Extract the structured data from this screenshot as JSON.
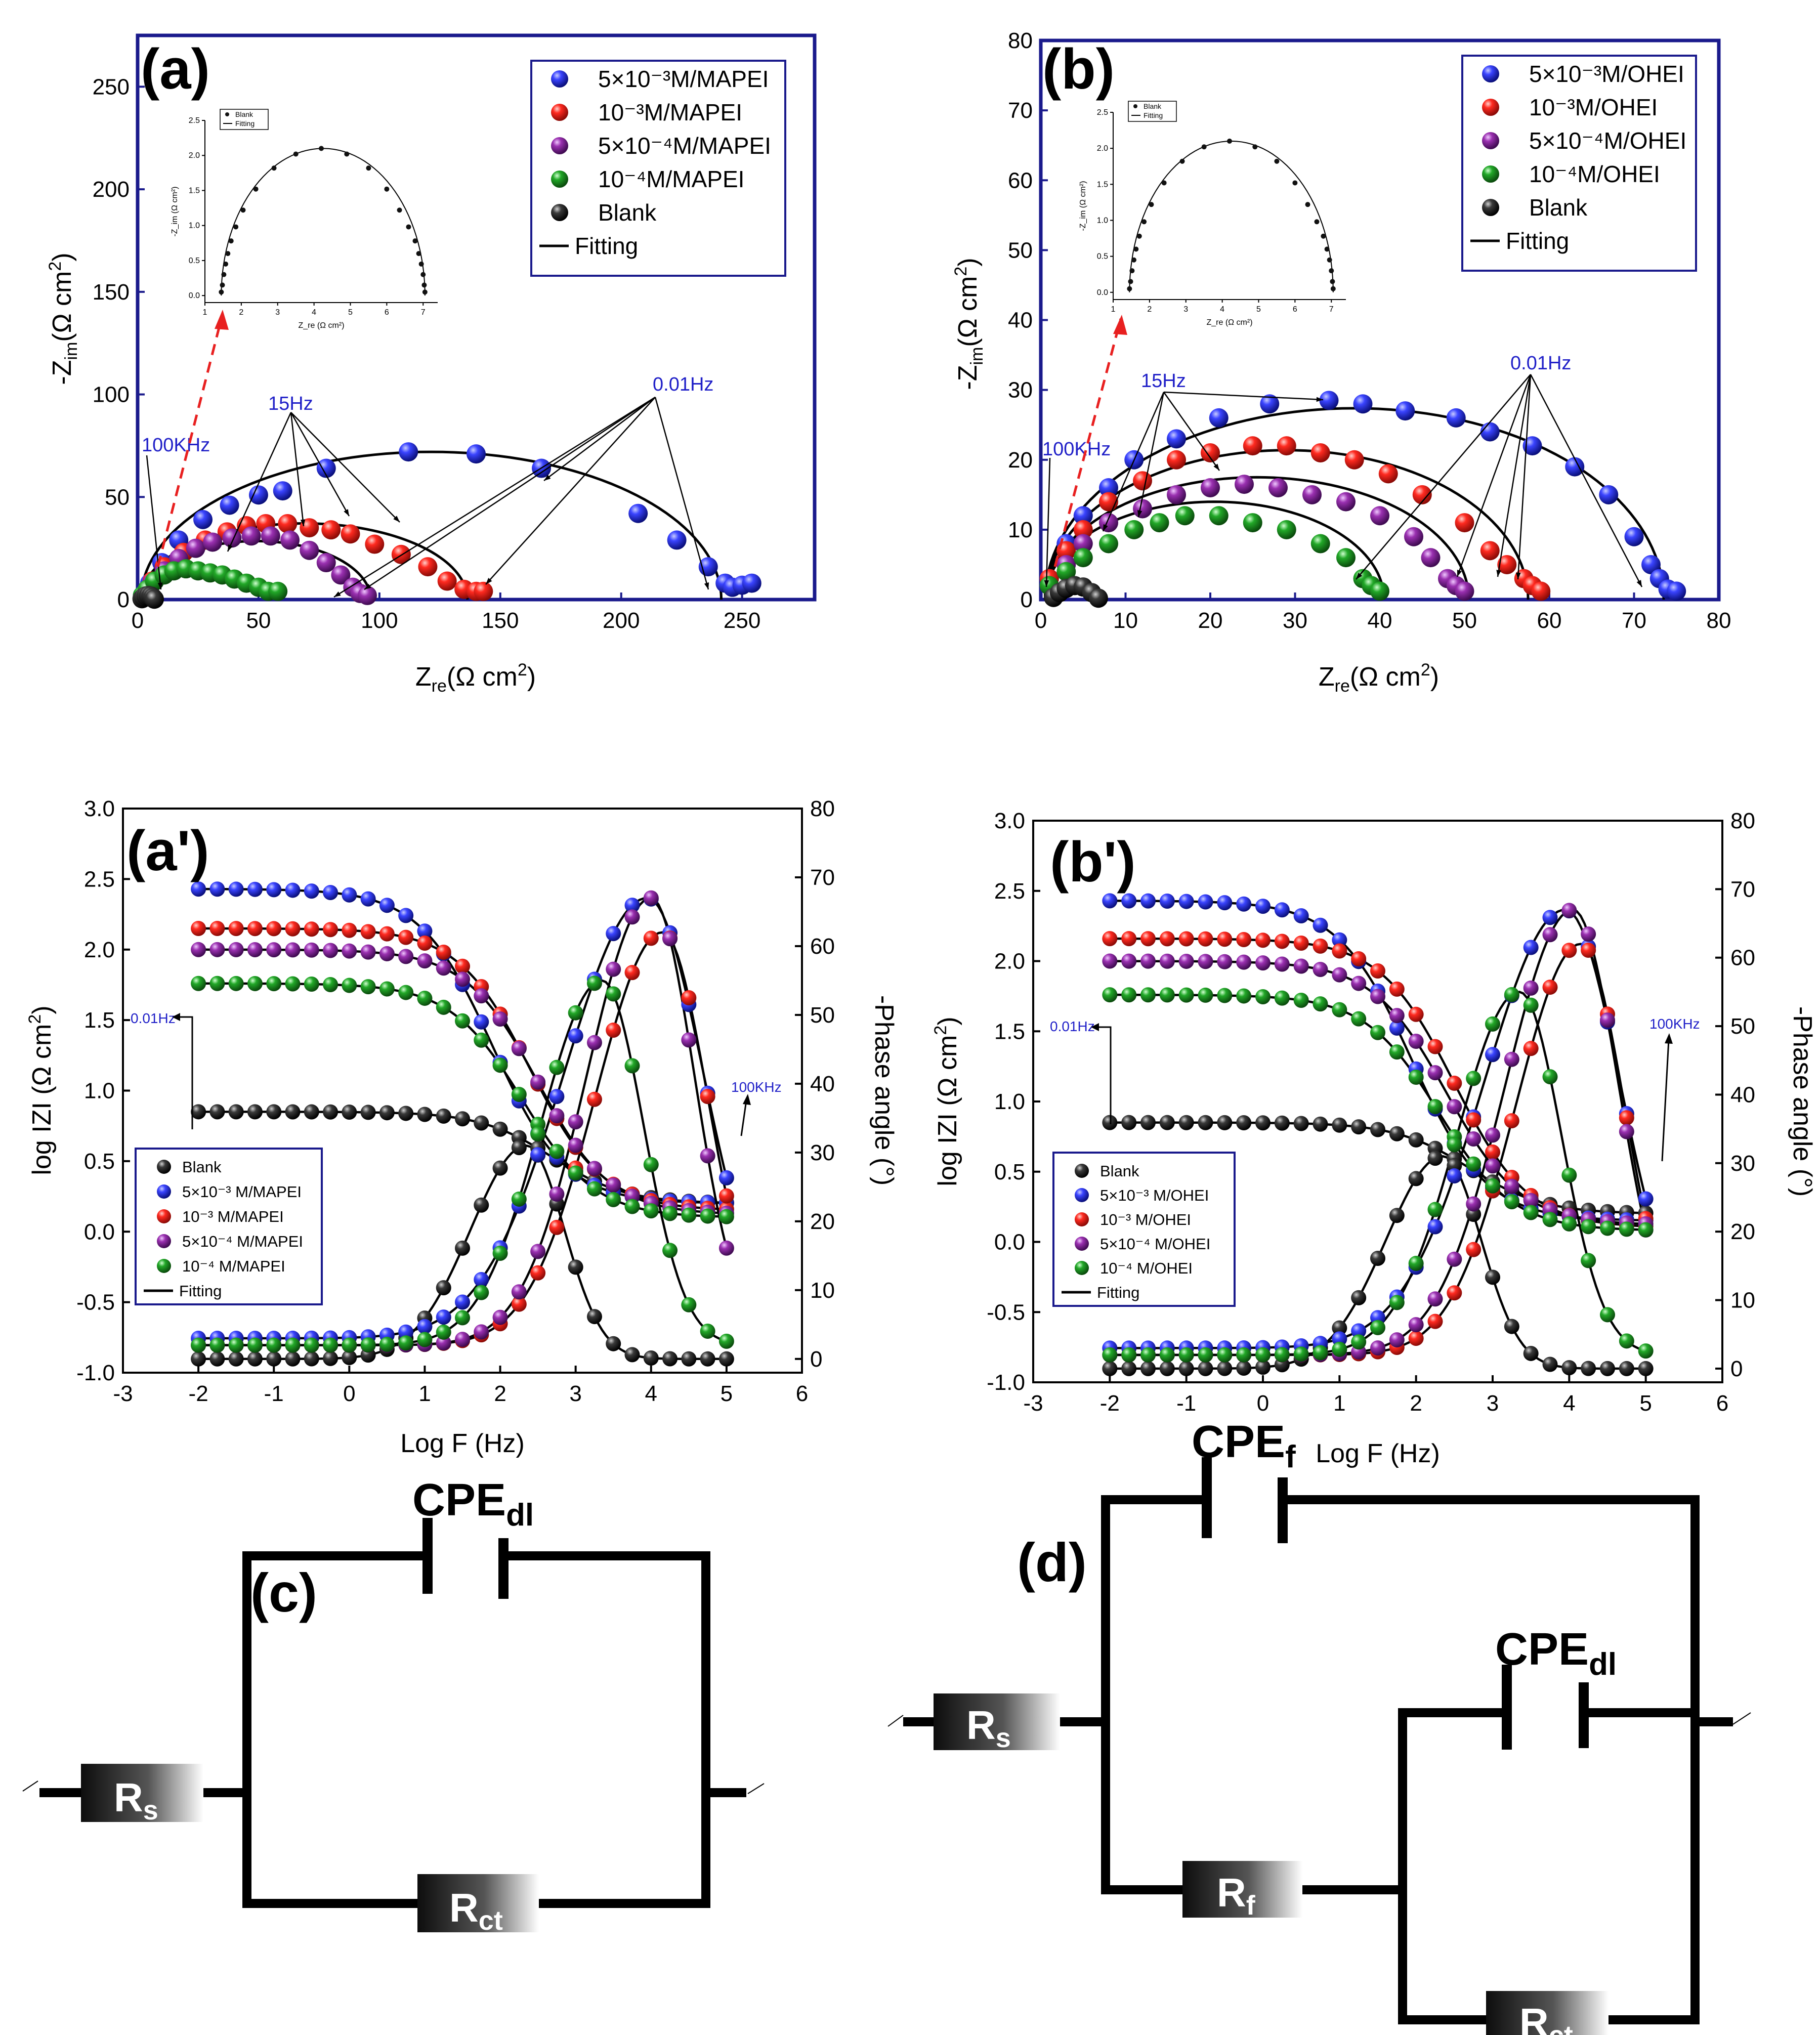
{
  "colors": {
    "blue": "#2a35e8",
    "red": "#f0201c",
    "purple": "#8a2a9a",
    "green": "#26a02a",
    "black": "#1a1a1a",
    "navy": "#1a1a8c",
    "annot": "#2020c8",
    "dash": "#e82020"
  },
  "chart_data": [
    {
      "id": "a",
      "type": "scatter",
      "panel_label": "(a)",
      "xlabel": "Z_re(Ω cm²)",
      "ylabel": "-Z_im(Ω cm²)",
      "xlim": [
        0,
        280
      ],
      "ylim": [
        0,
        275
      ],
      "xticks": [
        "0",
        "50",
        "100",
        "150",
        "200",
        "250"
      ],
      "yticks": [
        "0",
        "50",
        "100",
        "150",
        "200",
        "250"
      ],
      "legend": [
        {
          "series": "5×10⁻³M/MAPEI",
          "color": "blue"
        },
        {
          "series": "10⁻³M/MAPEI",
          "color": "red"
        },
        {
          "series": "5×10⁻⁴M/MAPEI",
          "color": "purple"
        },
        {
          "series": "10⁻⁴M/MAPEI",
          "color": "green"
        },
        {
          "series": "Blank",
          "color": "black"
        },
        {
          "series": "Fitting",
          "color": "black",
          "line": true
        }
      ],
      "series": [
        {
          "name": "5×10⁻³M/MAPEI",
          "color": "blue",
          "rs": 1.4,
          "rct": 240,
          "depress": 0.6,
          "x": [
            2,
            5,
            10,
            17,
            27,
            38,
            50,
            60,
            78,
            112,
            140,
            167,
            207,
            223,
            236,
            243,
            246,
            250,
            254
          ],
          "y": [
            2,
            8,
            18,
            29,
            39,
            46,
            51,
            53,
            64,
            72,
            71,
            64,
            42,
            29,
            16,
            8,
            6,
            7,
            8
          ]
        },
        {
          "name": "10⁻³M/MAPEI",
          "color": "red",
          "rs": 1.4,
          "rct": 135,
          "depress": 0.55,
          "x": [
            3,
            6,
            11,
            19,
            28,
            37,
            45,
            53,
            62,
            71,
            80,
            88,
            98,
            109,
            120,
            128,
            135,
            140,
            143
          ],
          "y": [
            3,
            9,
            16,
            23,
            29,
            33,
            36,
            37,
            37,
            35,
            34,
            32,
            27,
            22,
            16,
            9,
            5,
            4,
            4
          ]
        },
        {
          "name": "5×10⁻⁴M/MAPEI",
          "color": "purple",
          "rs": 1.4,
          "rct": 95,
          "depress": 0.6,
          "x": [
            3,
            6,
            11,
            17,
            24,
            31,
            39,
            47,
            55,
            63,
            71,
            78,
            84,
            89,
            92,
            95
          ],
          "y": [
            3,
            8,
            14,
            20,
            25,
            28,
            30,
            31,
            31,
            29,
            24,
            18,
            12,
            6,
            3,
            2
          ]
        },
        {
          "name": "10⁻⁴M/MAPEI",
          "color": "green",
          "rs": 1.4,
          "rct": 52,
          "depress": 0.55,
          "x": [
            2,
            4,
            7,
            11,
            15,
            20,
            25,
            30,
            35,
            40,
            45,
            50,
            54,
            58
          ],
          "y": [
            2,
            5,
            9,
            12,
            14,
            15,
            14,
            13,
            12,
            10,
            8,
            6,
            4,
            4
          ]
        },
        {
          "name": "Blank",
          "color": "black",
          "rs": 1.4,
          "rct": 5.6,
          "depress": 0.75,
          "x": [
            1.8,
            2.5,
            3.5,
            4.5,
            5.5,
            6.3,
            6.9
          ],
          "y": [
            0.4,
            1.2,
            1.8,
            2,
            1.7,
            1,
            0.2
          ]
        }
      ],
      "annotations": {
        "hf": "100KHz",
        "mid": "15Hz",
        "lf": "0.01Hz"
      },
      "inset": {
        "xlabel": "Z_re (Ω cm²)",
        "ylabel": "-Z_im (Ω cm²)",
        "xticks": [
          "1",
          "2",
          "3",
          "4",
          "5",
          "6",
          "7"
        ],
        "yticks": [
          "0.0",
          "0.5",
          "1.0",
          "1.5",
          "2.0",
          "2.5"
        ],
        "legend": [
          "Blank",
          "Fitting"
        ],
        "x": [
          1.45,
          1.48,
          1.52,
          1.57,
          1.63,
          1.72,
          1.85,
          2.05,
          2.4,
          2.9,
          3.5,
          4.2,
          4.9,
          5.5,
          6.0,
          6.35,
          6.6,
          6.78,
          6.88,
          6.95,
          7.0,
          7.03,
          7.05
        ],
        "y": [
          0.05,
          0.15,
          0.3,
          0.45,
          0.6,
          0.78,
          0.98,
          1.22,
          1.52,
          1.82,
          2.02,
          2.1,
          2.02,
          1.82,
          1.52,
          1.22,
          0.98,
          0.78,
          0.6,
          0.45,
          0.3,
          0.15,
          0.05
        ]
      }
    },
    {
      "id": "b",
      "type": "scatter",
      "panel_label": "(b)",
      "xlabel": "Z_re(Ω cm²)",
      "ylabel": "-Z_im(Ω cm²)",
      "xlim": [
        0,
        80
      ],
      "ylim": [
        0,
        80
      ],
      "xticks": [
        "0",
        "10",
        "20",
        "30",
        "40",
        "50",
        "60",
        "70",
        "80"
      ],
      "yticks": [
        "0",
        "10",
        "20",
        "30",
        "40",
        "50",
        "60",
        "70",
        "80"
      ],
      "legend": [
        {
          "series": "5×10⁻³M/OHEI",
          "color": "blue"
        },
        {
          "series": "10⁻³M/OHEI",
          "color": "red"
        },
        {
          "series": "5×10⁻⁴M/OHEI",
          "color": "purple"
        },
        {
          "series": "10⁻⁴M/OHEI",
          "color": "green"
        },
        {
          "series": "Blank",
          "color": "black"
        },
        {
          "series": "Fitting",
          "color": "black",
          "line": true
        }
      ],
      "series": [
        {
          "name": "5×10⁻³M/OHEI",
          "color": "blue",
          "rs": 0.5,
          "rct": 73,
          "depress": 0.75,
          "x": [
            1,
            3,
            5,
            8,
            11,
            16,
            21,
            27,
            34,
            38,
            43,
            49,
            53,
            58,
            63,
            67,
            70,
            72,
            73,
            74,
            75
          ],
          "y": [
            3,
            8,
            12,
            16,
            20,
            23,
            26,
            28,
            28.5,
            28,
            27,
            26,
            24,
            22,
            19,
            15,
            9,
            5,
            3,
            1.5,
            1.2
          ]
        },
        {
          "name": "10⁻³M/OHEI",
          "color": "red",
          "rs": 0.5,
          "rct": 57,
          "depress": 0.75,
          "x": [
            1,
            3,
            5,
            8,
            12,
            16,
            20,
            25,
            29,
            33,
            37,
            41,
            45,
            50,
            53,
            55,
            57,
            58,
            59
          ],
          "y": [
            3,
            7,
            10,
            14,
            17,
            20,
            21,
            22,
            22,
            21,
            20,
            18,
            15,
            11,
            7,
            5,
            3,
            2,
            1.2
          ]
        },
        {
          "name": "5×10⁻⁴M/OHEI",
          "color": "purple",
          "rs": 0.5,
          "rct": 50,
          "depress": 0.7,
          "x": [
            1,
            3,
            5,
            8,
            12,
            16,
            20,
            24,
            28,
            32,
            36,
            40,
            44,
            46,
            48,
            49,
            50
          ],
          "y": [
            2,
            5,
            8,
            11,
            13,
            15,
            16,
            16.5,
            16,
            15,
            14,
            12,
            9,
            6,
            3,
            2,
            1.2
          ]
        },
        {
          "name": "10⁻⁴M/OHEI",
          "color": "green",
          "rs": 0.5,
          "rct": 40,
          "depress": 0.7,
          "x": [
            1,
            3,
            5,
            8,
            11,
            14,
            17,
            21,
            25,
            29,
            33,
            36,
            38,
            39,
            40
          ],
          "y": [
            2,
            4,
            6,
            8,
            10,
            11,
            12,
            12,
            11,
            10,
            8,
            6,
            3,
            2,
            1.2
          ]
        },
        {
          "name": "Blank",
          "color": "black",
          "rs": 1.4,
          "rct": 5.6,
          "depress": 0.75,
          "x": [
            1.5,
            2.2,
            3,
            4,
            5,
            6,
            6.8
          ],
          "y": [
            0.3,
            1,
            1.6,
            2,
            1.8,
            1,
            0.2
          ]
        }
      ],
      "annotations": {
        "hf": "100KHz",
        "mid": "15Hz",
        "lf": "0.01Hz"
      },
      "inset": {
        "xlabel": "Z_re (Ω cm²)",
        "ylabel": "-Z_im (Ω cm²)",
        "xticks": [
          "1",
          "2",
          "3",
          "4",
          "5",
          "6",
          "7"
        ],
        "yticks": [
          "0.0",
          "0.5",
          "1.0",
          "1.5",
          "2.0",
          "2.5"
        ],
        "legend": [
          "Blank",
          "Fitting"
        ],
        "x": [
          1.45,
          1.48,
          1.52,
          1.57,
          1.63,
          1.72,
          1.85,
          2.05,
          2.4,
          2.9,
          3.5,
          4.2,
          4.9,
          5.5,
          6.0,
          6.35,
          6.6,
          6.78,
          6.88,
          6.95,
          7.0,
          7.03,
          7.05
        ],
        "y": [
          0.05,
          0.15,
          0.3,
          0.45,
          0.6,
          0.78,
          0.98,
          1.22,
          1.52,
          1.82,
          2.02,
          2.1,
          2.02,
          1.82,
          1.52,
          1.22,
          0.98,
          0.78,
          0.6,
          0.45,
          0.3,
          0.15,
          0.05
        ]
      }
    },
    {
      "id": "a2",
      "type": "line",
      "panel_label": "(a')",
      "xlabel": "Log F (Hz)",
      "ylabel": "log IZI (Ω cm²)",
      "y2label": "-Phase angle (°)",
      "xlim": [
        -3,
        6
      ],
      "ylim": [
        -1,
        3
      ],
      "y2lim": [
        -2,
        80
      ],
      "xticks": [
        "-3",
        "-2",
        "-1",
        "0",
        "1",
        "2",
        "3",
        "4",
        "5",
        "6"
      ],
      "yticks": [
        "-1.0",
        "-0.5",
        "0.0",
        "0.5",
        "1.0",
        "1.5",
        "2.0",
        "2.5",
        "3.0"
      ],
      "y2ticks": [
        "0",
        "10",
        "20",
        "30",
        "40",
        "50",
        "60",
        "70",
        "80"
      ],
      "legend": [
        {
          "series": "Blank",
          "color": "black"
        },
        {
          "series": "5×10⁻³ M/MAPEI",
          "color": "blue"
        },
        {
          "series": "10⁻³ M/MAPEI",
          "color": "red"
        },
        {
          "series": "5×10⁻⁴ M/MAPEI",
          "color": "purple"
        },
        {
          "series": "10⁻⁴ M/MAPEI",
          "color": "green"
        },
        {
          "series": "Fitting",
          "color": "black",
          "line": true
        }
      ],
      "series": [
        {
          "name": "Blank",
          "color": "black",
          "lowZ": 0.85,
          "highZ": 0.2,
          "fc": 2.7,
          "phaseMax": 31,
          "phaseCenter": 2.35,
          "phaseWidth": 1.05,
          "phaseBase": 0
        },
        {
          "name": "5×10⁻³ M/MAPEI",
          "color": "blue",
          "lowZ": 2.43,
          "highZ": 0.2,
          "fc": 1.9,
          "phaseMax": 67,
          "phaseCenter": 3.95,
          "phaseWidth": 1.55,
          "phaseBase": 3
        },
        {
          "name": "10⁻³ M/MAPEI",
          "color": "red",
          "lowZ": 2.15,
          "highZ": 0.15,
          "fc": 2.4,
          "phaseMax": 62,
          "phaseCenter": 4.15,
          "phaseWidth": 1.25,
          "phaseBase": 2
        },
        {
          "name": "5×10⁻⁴ M/MAPEI",
          "color": "purple",
          "lowZ": 2.0,
          "highZ": 0.12,
          "fc": 2.5,
          "phaseMax": 67,
          "phaseCenter": 4.0,
          "phaseWidth": 1.2,
          "phaseBase": 2
        },
        {
          "name": "10⁻⁴ M/MAPEI",
          "color": "green",
          "lowZ": 1.76,
          "highZ": 0.1,
          "fc": 2.3,
          "phaseMax": 55,
          "phaseCenter": 3.35,
          "phaseWidth": 1.15,
          "phaseBase": 2
        }
      ],
      "annotations": {
        "lf": "0.01Hz",
        "hf": "100KHz"
      }
    },
    {
      "id": "b2",
      "type": "line",
      "panel_label": "(b')",
      "xlabel": "Log F (Hz)",
      "ylabel": "log IZI (Ω cm²)",
      "y2label": "-Phase angle (°)",
      "xlim": [
        -3,
        6
      ],
      "ylim": [
        -1,
        3
      ],
      "y2lim": [
        -2,
        80
      ],
      "xticks": [
        "-3",
        "-2",
        "-1",
        "0",
        "1",
        "2",
        "3",
        "4",
        "5",
        "6"
      ],
      "yticks": [
        "-1.0",
        "-0.5",
        "0.0",
        "0.5",
        "1.0",
        "1.5",
        "2.0",
        "2.5",
        "3.0"
      ],
      "y2ticks": [
        "0",
        "10",
        "20",
        "30",
        "40",
        "50",
        "60",
        "70",
        "80"
      ],
      "legend": [
        {
          "series": "Blank",
          "color": "black"
        },
        {
          "series": "5×10⁻³ M/OHEI",
          "color": "blue"
        },
        {
          "series": "10⁻³ M/OHEI",
          "color": "red"
        },
        {
          "series": "5×10⁻⁴ M/OHEI",
          "color": "purple"
        },
        {
          "series": "10⁻⁴ M/OHEI",
          "color": "green"
        },
        {
          "series": "Fitting",
          "color": "black",
          "line": true
        }
      ],
      "series": [
        {
          "name": "Blank",
          "color": "black",
          "lowZ": 0.85,
          "highZ": 0.2,
          "fc": 2.7,
          "phaseMax": 31,
          "phaseCenter": 2.35,
          "phaseWidth": 1.05,
          "phaseBase": 0
        },
        {
          "name": "5×10⁻³ M/OHEI",
          "color": "blue",
          "lowZ": 2.43,
          "highZ": 0.15,
          "fc": 1.95,
          "phaseMax": 67,
          "phaseCenter": 3.95,
          "phaseWidth": 1.5,
          "phaseBase": 3
        },
        {
          "name": "10⁻³ M/OHEI",
          "color": "red",
          "lowZ": 2.16,
          "highZ": 0.1,
          "fc": 2.5,
          "phaseMax": 62,
          "phaseCenter": 4.15,
          "phaseWidth": 1.2,
          "phaseBase": 2
        },
        {
          "name": "5×10⁻⁴ M/OHEI",
          "color": "purple",
          "lowZ": 2.0,
          "highZ": 0.12,
          "fc": 2.4,
          "phaseMax": 67,
          "phaseCenter": 4.05,
          "phaseWidth": 1.25,
          "phaseBase": 2
        },
        {
          "name": "10⁻⁴ M/OHEI",
          "color": "green",
          "lowZ": 1.76,
          "highZ": 0.08,
          "fc": 2.3,
          "phaseMax": 55,
          "phaseCenter": 3.35,
          "phaseWidth": 1.15,
          "phaseBase": 2
        }
      ],
      "annotations": {
        "lf": "0.01Hz",
        "hf": "100KHz"
      }
    }
  ],
  "circuits": {
    "c": {
      "label": "(c)",
      "cpe_main": "CPE",
      "cpe_sub": "dl",
      "rs_main": "R",
      "rs_sub": "s",
      "rct_main": "R",
      "rct_sub": "ct"
    },
    "d": {
      "label": "(d)",
      "cpef_main": "CPE",
      "cpef_sub": "f",
      "cpedl_main": "CPE",
      "cpedl_sub": "dl",
      "rs_main": "R",
      "rs_sub": "s",
      "rf_main": "R",
      "rf_sub": "f",
      "rct_main": "R",
      "rct_sub": "ct"
    }
  }
}
